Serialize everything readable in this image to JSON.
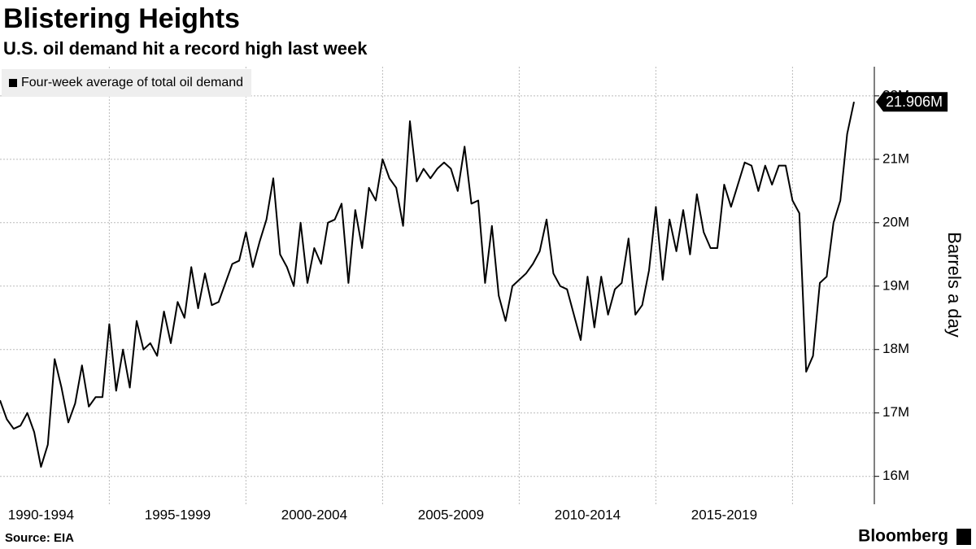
{
  "chart_data": {
    "type": "line",
    "title": "Blistering Heights",
    "subtitle": "U.S. oil demand hit a record high last week",
    "y_axis_label": "Barrels a day",
    "source": "Source: EIA",
    "brand": "Bloomberg",
    "legend_position": "top-left",
    "grid": true,
    "categories": [
      null,
      null,
      null,
      null,
      null,
      null,
      "1990-1994",
      null,
      null,
      null,
      null,
      null,
      null,
      null,
      null,
      null,
      null,
      null,
      null,
      null,
      null,
      null,
      null,
      null,
      null,
      null,
      "1995-1999",
      null,
      null,
      null,
      null,
      null,
      null,
      null,
      null,
      null,
      null,
      null,
      null,
      null,
      null,
      null,
      null,
      null,
      null,
      null,
      "2000-2004",
      null,
      null,
      null,
      null,
      null,
      null,
      null,
      null,
      null,
      null,
      null,
      null,
      null,
      null,
      null,
      null,
      null,
      null,
      null,
      "2005-2009",
      null,
      null,
      null,
      null,
      null,
      null,
      null,
      null,
      null,
      null,
      null,
      null,
      null,
      null,
      null,
      null,
      null,
      null,
      null,
      "2010-2014",
      null,
      null,
      null,
      null,
      null,
      null,
      null,
      null,
      null,
      null,
      null,
      null,
      null,
      null,
      null,
      null,
      null,
      null,
      null,
      "2015-2019",
      null,
      null,
      null,
      null,
      null,
      null,
      null,
      null,
      null,
      null,
      null,
      null,
      null,
      null,
      null,
      null,
      null,
      null,
      null
    ],
    "series": [
      {
        "name": "Four-week average of total oil demand",
        "color": "#000000",
        "values": [
          17.2,
          16.9,
          16.75,
          16.8,
          17.0,
          16.7,
          16.15,
          16.5,
          17.85,
          17.4,
          16.85,
          17.15,
          17.75,
          17.1,
          17.25,
          17.25,
          18.4,
          17.35,
          18.0,
          17.4,
          18.45,
          18.0,
          18.1,
          17.9,
          18.6,
          18.1,
          18.75,
          18.5,
          19.3,
          18.65,
          19.2,
          18.7,
          18.75,
          19.05,
          19.35,
          19.4,
          19.85,
          19.3,
          19.7,
          20.05,
          20.7,
          19.5,
          19.3,
          19.0,
          20.0,
          19.05,
          19.6,
          19.35,
          20.0,
          20.05,
          20.3,
          19.05,
          20.2,
          19.6,
          20.55,
          20.35,
          21.0,
          20.7,
          20.55,
          19.95,
          21.6,
          20.65,
          20.85,
          20.7,
          20.85,
          20.95,
          20.85,
          20.5,
          21.2,
          20.3,
          20.35,
          19.05,
          19.95,
          18.85,
          18.45,
          19.0,
          19.1,
          19.2,
          19.35,
          19.55,
          20.05,
          19.2,
          19.0,
          18.95,
          18.55,
          18.15,
          19.15,
          18.35,
          19.15,
          18.55,
          18.95,
          19.05,
          19.75,
          18.55,
          18.7,
          19.25,
          20.25,
          19.1,
          20.05,
          19.55,
          20.2,
          19.5,
          20.45,
          19.85,
          19.6,
          19.6,
          20.6,
          20.25,
          20.6,
          20.95,
          20.9,
          20.5,
          20.9,
          20.6,
          20.9,
          20.9,
          20.35,
          20.15,
          17.65,
          17.9,
          19.05,
          19.15,
          20.0,
          20.35,
          21.4,
          21.906
        ],
        "value_labels": [
          null,
          null,
          null,
          null,
          null,
          null,
          null,
          null,
          null,
          null,
          null,
          null,
          null,
          null,
          null,
          null,
          null,
          null,
          null,
          null,
          null,
          null,
          null,
          null,
          null,
          null,
          null,
          null,
          null,
          null,
          null,
          null,
          null,
          null,
          null,
          null,
          null,
          null,
          null,
          null,
          null,
          null,
          null,
          null,
          null,
          null,
          null,
          null,
          null,
          null,
          null,
          null,
          null,
          null,
          null,
          null,
          null,
          null,
          null,
          null,
          null,
          null,
          null,
          null,
          null,
          null,
          null,
          null,
          null,
          null,
          null,
          null,
          null,
          null,
          null,
          null,
          null,
          null,
          null,
          null,
          null,
          null,
          null,
          null,
          null,
          null,
          null,
          null,
          null,
          null,
          null,
          null,
          null,
          null,
          null,
          null,
          null,
          null,
          null,
          null,
          null,
          null,
          null,
          null,
          null,
          null,
          null,
          null,
          null,
          null,
          null,
          null,
          null,
          null,
          null,
          null,
          null,
          null,
          null,
          null,
          null,
          null,
          null,
          null,
          null,
          "21.906M"
        ]
      }
    ],
    "ylim": [
      15.56,
      22.46
    ],
    "yticks": [
      {
        "value": 16,
        "label": "16M"
      },
      {
        "value": 17,
        "label": "17M"
      },
      {
        "value": 18,
        "label": "18M"
      },
      {
        "value": 19,
        "label": "19M"
      },
      {
        "value": 20,
        "label": "20M"
      },
      {
        "value": 21,
        "label": "21M"
      },
      {
        "value": 22,
        "label": "22M"
      }
    ]
  }
}
